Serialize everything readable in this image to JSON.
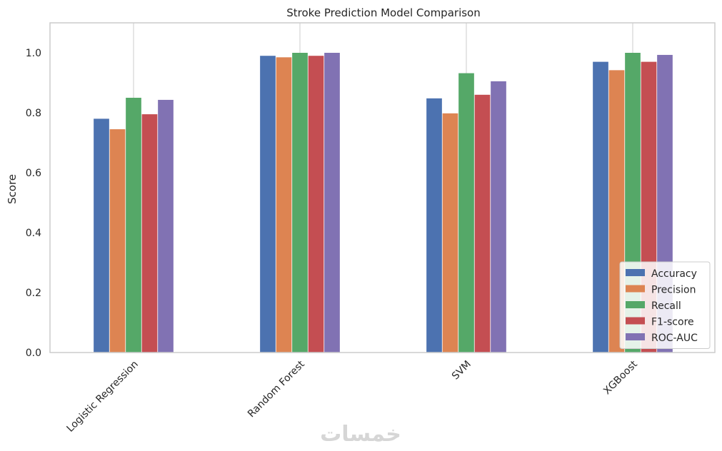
{
  "watermark": "خمسات",
  "chart_data": {
    "type": "bar",
    "title": "Stroke Prediction Model Comparison",
    "xlabel": "",
    "ylabel": "Score",
    "ylim": [
      0,
      1.1
    ],
    "yticks": [
      "0.0",
      "0.2",
      "0.4",
      "0.6",
      "0.8",
      "1.0"
    ],
    "categories": [
      "Logistic Regression",
      "Random Forest",
      "SVM",
      "XGBoost"
    ],
    "legend_position": "lower-right",
    "grid": "vertical",
    "series": [
      {
        "name": "Accuracy",
        "color": "#4c72b0",
        "values": [
          0.78,
          0.99,
          0.848,
          0.97
        ]
      },
      {
        "name": "Precision",
        "color": "#dd8452",
        "values": [
          0.745,
          0.985,
          0.798,
          0.942
        ]
      },
      {
        "name": "Recall",
        "color": "#55a868",
        "values": [
          0.85,
          1.0,
          0.932,
          1.0
        ]
      },
      {
        "name": "F1-score",
        "color": "#c44e52",
        "values": [
          0.795,
          0.99,
          0.86,
          0.97
        ]
      },
      {
        "name": "ROC-AUC",
        "color": "#8172b3",
        "values": [
          0.843,
          1.0,
          0.905,
          0.993
        ]
      }
    ]
  }
}
